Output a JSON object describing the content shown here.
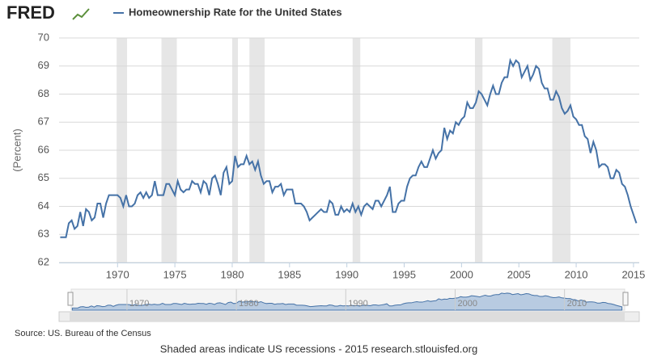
{
  "chart_data": {
    "type": "line",
    "logo": "FRED",
    "y_label": "(Percent)",
    "source": "Source: US. Bureau of the Census",
    "footer": "Shaded areas indicate US recessions - 2015 research.stlouisfed.org",
    "xlim": [
      1964.9,
      2015.5
    ],
    "ylim": [
      62,
      70
    ],
    "xticks": [
      1970,
      1975,
      1980,
      1985,
      1990,
      1995,
      2000,
      2005,
      2010,
      2015
    ],
    "yticks": [
      62,
      63,
      64,
      65,
      66,
      67,
      68,
      69,
      70
    ],
    "recession_color": "#e6e6e6",
    "recessions": [
      [
        1969.92,
        1970.83
      ],
      [
        1973.83,
        1975.17
      ],
      [
        1980.0,
        1980.5
      ],
      [
        1981.5,
        1982.83
      ],
      [
        1990.5,
        1991.17
      ],
      [
        2001.17,
        2001.83
      ],
      [
        2007.92,
        2009.5
      ]
    ],
    "navigator": {
      "xticks": [
        1970,
        1980,
        1990,
        2000,
        2010
      ]
    },
    "x": [
      1965,
      1965.25,
      1965.5,
      1965.75,
      1966,
      1966.25,
      1966.5,
      1966.75,
      1967,
      1967.25,
      1967.5,
      1967.75,
      1968,
      1968.25,
      1968.5,
      1968.75,
      1969,
      1969.25,
      1969.5,
      1969.75,
      1970,
      1970.25,
      1970.5,
      1970.75,
      1971,
      1971.25,
      1971.5,
      1971.75,
      1972,
      1972.25,
      1972.5,
      1972.75,
      1973,
      1973.25,
      1973.5,
      1973.75,
      1974,
      1974.25,
      1974.5,
      1974.75,
      1975,
      1975.25,
      1975.5,
      1975.75,
      1976,
      1976.25,
      1976.5,
      1976.75,
      1977,
      1977.25,
      1977.5,
      1977.75,
      1978,
      1978.25,
      1978.5,
      1978.75,
      1979,
      1979.25,
      1979.5,
      1979.75,
      1980,
      1980.25,
      1980.5,
      1980.75,
      1981,
      1981.25,
      1981.5,
      1981.75,
      1982,
      1982.25,
      1982.5,
      1982.75,
      1983,
      1983.25,
      1983.5,
      1983.75,
      1984,
      1984.25,
      1984.5,
      1984.75,
      1985,
      1985.25,
      1985.5,
      1985.75,
      1986,
      1986.25,
      1986.5,
      1986.75,
      1987,
      1987.25,
      1987.5,
      1987.75,
      1988,
      1988.25,
      1988.5,
      1988.75,
      1989,
      1989.25,
      1989.5,
      1989.75,
      1990,
      1990.25,
      1990.5,
      1990.75,
      1991,
      1991.25,
      1991.5,
      1991.75,
      1992,
      1992.25,
      1992.5,
      1992.75,
      1993,
      1993.25,
      1993.5,
      1993.75,
      1994,
      1994.25,
      1994.5,
      1994.75,
      1995,
      1995.25,
      1995.5,
      1995.75,
      1996,
      1996.25,
      1996.5,
      1996.75,
      1997,
      1997.25,
      1997.5,
      1997.75,
      1998,
      1998.25,
      1998.5,
      1998.75,
      1999,
      1999.25,
      1999.5,
      1999.75,
      2000,
      2000.25,
      2000.5,
      2000.75,
      2001,
      2001.25,
      2001.5,
      2001.75,
      2002,
      2002.25,
      2002.5,
      2002.75,
      2003,
      2003.25,
      2003.5,
      2003.75,
      2004,
      2004.25,
      2004.5,
      2004.75,
      2005,
      2005.25,
      2005.5,
      2005.75,
      2006,
      2006.25,
      2006.5,
      2006.75,
      2007,
      2007.25,
      2007.5,
      2007.75,
      2008,
      2008.25,
      2008.5,
      2008.75,
      2009,
      2009.25,
      2009.5,
      2009.75,
      2010,
      2010.25,
      2010.5,
      2010.75,
      2011,
      2011.25,
      2011.5,
      2011.75,
      2012,
      2012.25,
      2012.5,
      2012.75,
      2013,
      2013.25,
      2013.5,
      2013.75,
      2014,
      2014.25,
      2014.5,
      2014.75,
      2015,
      2015.25
    ],
    "series": [
      {
        "name": "Homeownership Rate for the United States",
        "color": "#4572a7",
        "values": [
          62.9,
          62.9,
          62.9,
          63.4,
          63.5,
          63.2,
          63.3,
          63.8,
          63.3,
          63.9,
          63.8,
          63.5,
          63.6,
          64.1,
          64.1,
          63.6,
          64.1,
          64.4,
          64.4,
          64.4,
          64.4,
          64.3,
          64.0,
          64.4,
          64.0,
          64.0,
          64.1,
          64.4,
          64.5,
          64.3,
          64.5,
          64.3,
          64.4,
          64.9,
          64.4,
          64.4,
          64.4,
          64.8,
          64.8,
          64.6,
          64.4,
          64.9,
          64.6,
          64.5,
          64.6,
          64.6,
          64.9,
          64.8,
          64.8,
          64.5,
          64.9,
          64.8,
          64.4,
          65.0,
          65.1,
          64.8,
          64.4,
          65.2,
          65.4,
          64.8,
          64.9,
          65.8,
          65.4,
          65.5,
          65.5,
          65.8,
          65.5,
          65.6,
          65.3,
          65.6,
          65.1,
          64.8,
          64.9,
          64.9,
          64.5,
          64.7,
          64.7,
          64.8,
          64.4,
          64.6,
          64.6,
          64.6,
          64.1,
          64.1,
          64.1,
          64.0,
          63.8,
          63.5,
          63.6,
          63.7,
          63.8,
          63.9,
          63.8,
          63.8,
          64.2,
          64.1,
          63.7,
          63.7,
          64.0,
          63.8,
          63.9,
          63.8,
          64.1,
          63.8,
          64.0,
          63.7,
          64.0,
          64.1,
          64.0,
          63.9,
          64.2,
          64.2,
          64.0,
          64.2,
          64.4,
          64.7,
          63.8,
          63.8,
          64.1,
          64.2,
          64.2,
          64.7,
          65.0,
          65.1,
          65.1,
          65.4,
          65.6,
          65.4,
          65.4,
          65.7,
          66.0,
          65.7,
          65.9,
          66.0,
          66.8,
          66.4,
          66.7,
          66.6,
          67.0,
          66.9,
          67.1,
          67.2,
          67.7,
          67.5,
          67.5,
          67.7,
          68.1,
          68.0,
          67.8,
          67.6,
          68.0,
          68.3,
          68.0,
          68.0,
          68.4,
          68.6,
          68.6,
          69.2,
          69.0,
          69.2,
          69.1,
          68.6,
          68.8,
          69.0,
          68.5,
          68.7,
          69.0,
          68.9,
          68.4,
          68.2,
          68.2,
          67.8,
          67.8,
          68.1,
          67.9,
          67.5,
          67.3,
          67.4,
          67.6,
          67.2,
          67.1,
          66.9,
          66.9,
          66.5,
          66.4,
          65.9,
          66.3,
          66.0,
          65.4,
          65.5,
          65.5,
          65.4,
          65.0,
          65.0,
          65.3,
          65.2,
          64.8,
          64.7,
          64.4,
          64.0,
          63.7,
          63.4
        ]
      }
    ]
  }
}
